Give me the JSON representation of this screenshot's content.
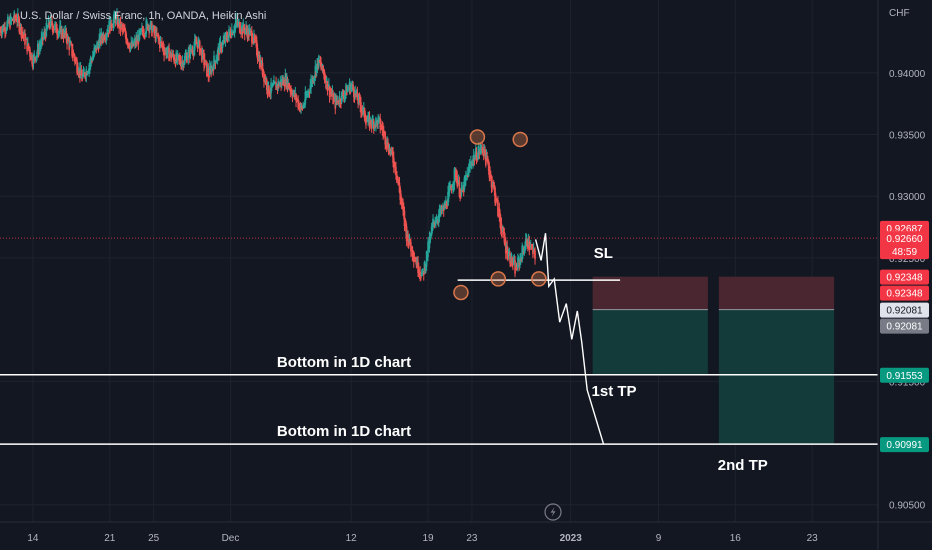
{
  "header": {
    "symbol_title": "U.S. Dollar / Swiss Franc, 1h, OANDA, Heikin Ashi",
    "currency": "CHF"
  },
  "colors": {
    "background": "#131722",
    "grid": "#1e222d",
    "up": "#26a69a",
    "down": "#ef5350",
    "stop_zone": "#4a2730",
    "target_zone": "#123b3a",
    "pattern_circle": "#d9774a"
  },
  "chart_data": {
    "type": "candlestick",
    "title": "U.S. Dollar / Swiss Franc, 1h, OANDA, Heikin Ashi",
    "ylim": [
      0.9036,
      0.9459
    ],
    "y_ticks": [
      "0.94000",
      "0.93500",
      "0.93000",
      "0.92500",
      "0.91500",
      "0.90500"
    ],
    "x_ticks": [
      "14",
      "21",
      "25",
      "Dec",
      "12",
      "19",
      "23",
      "2023",
      "9",
      "16",
      "23"
    ],
    "x_tick_days": [
      14,
      21,
      25,
      32,
      43,
      50,
      54,
      63,
      71,
      78,
      85
    ],
    "xlim_days": [
      11.0,
      91.0
    ],
    "last_data_day": 59.8,
    "price_path": [
      [
        11.0,
        0.9435
      ],
      [
        12.5,
        0.9445
      ],
      [
        14.0,
        0.941
      ],
      [
        15.5,
        0.944
      ],
      [
        17.0,
        0.943
      ],
      [
        18.5,
        0.9395
      ],
      [
        20.0,
        0.9425
      ],
      [
        21.5,
        0.9445
      ],
      [
        23.0,
        0.942
      ],
      [
        24.5,
        0.944
      ],
      [
        26.0,
        0.9418
      ],
      [
        27.5,
        0.9408
      ],
      [
        29.0,
        0.9425
      ],
      [
        30.0,
        0.9398
      ],
      [
        31.0,
        0.942
      ],
      [
        32.5,
        0.944
      ],
      [
        34.0,
        0.943
      ],
      [
        35.5,
        0.9385
      ],
      [
        37.0,
        0.9395
      ],
      [
        38.5,
        0.937
      ],
      [
        40.0,
        0.941
      ],
      [
        41.5,
        0.9375
      ],
      [
        43.0,
        0.939
      ],
      [
        44.5,
        0.936
      ],
      [
        45.5,
        0.936
      ],
      [
        46.0,
        0.935
      ],
      [
        47.0,
        0.9325
      ],
      [
        48.0,
        0.927
      ],
      [
        49.0,
        0.9245
      ],
      [
        49.5,
        0.9235
      ],
      [
        50.5,
        0.928
      ],
      [
        51.5,
        0.929
      ],
      [
        52.5,
        0.932
      ],
      [
        53.0,
        0.93
      ],
      [
        54.0,
        0.933
      ],
      [
        55.0,
        0.934
      ],
      [
        56.0,
        0.9305
      ],
      [
        57.0,
        0.926
      ],
      [
        58.0,
        0.924
      ],
      [
        59.0,
        0.9265
      ],
      [
        60.0,
        0.9245
      ],
      [
        61.0,
        0.9225
      ],
      [
        62.0,
        0.924
      ],
      [
        63.0,
        0.926
      ],
      [
        64.0,
        0.9275
      ],
      [
        65.0,
        0.93
      ],
      [
        66.0,
        0.932
      ],
      [
        67.0,
        0.935
      ],
      [
        68.0,
        0.932
      ],
      [
        69.0,
        0.929
      ],
      [
        70.0,
        0.9285
      ],
      [
        71.0,
        0.9265
      ],
      [
        72.0,
        0.9235
      ],
      [
        73.0,
        0.9245
      ],
      [
        74.0,
        0.9275
      ],
      [
        75.0,
        0.926
      ],
      [
        76.0,
        0.9245
      ],
      [
        77.0,
        0.924
      ],
      [
        78.0,
        0.927
      ],
      [
        79.0,
        0.9295
      ],
      [
        80.0,
        0.93
      ],
      [
        81.0,
        0.932
      ],
      [
        82.0,
        0.9345
      ],
      [
        83.0,
        0.9315
      ],
      [
        84.0,
        0.929
      ],
      [
        85.0,
        0.9285
      ],
      [
        86.0,
        0.93
      ],
      [
        87.0,
        0.93
      ],
      [
        88.0,
        0.929
      ],
      [
        89.0,
        0.9265
      ]
    ],
    "support_line": {
      "price": 0.9232,
      "start_day": 52.7,
      "end_day": 67.5
    },
    "pattern_points": [
      {
        "day": 53.0,
        "price": 0.9222
      },
      {
        "day": 54.5,
        "price": 0.9348
      },
      {
        "day": 56.4,
        "price": 0.9233
      },
      {
        "day": 58.4,
        "price": 0.9346
      },
      {
        "day": 60.1,
        "price": 0.9233
      }
    ],
    "projection_path": [
      [
        59.8,
        0.9265
      ],
      [
        60.3,
        0.9248
      ],
      [
        60.7,
        0.927
      ],
      [
        61.0,
        0.9227
      ],
      [
        61.5,
        0.9233
      ],
      [
        62.0,
        0.9198
      ],
      [
        62.6,
        0.9213
      ],
      [
        63.1,
        0.9184
      ],
      [
        63.6,
        0.9207
      ],
      [
        64.0,
        0.9182
      ],
      [
        64.5,
        0.9143
      ],
      [
        66.0,
        0.9099
      ]
    ],
    "levels": [
      {
        "label": "Bottom in 1D chart",
        "price": 0.91553,
        "badge": "0.91553"
      },
      {
        "label": "Bottom in 1D chart",
        "price": 0.90991,
        "badge": "0.90991"
      }
    ],
    "positions": [
      {
        "start_day": 65.0,
        "end_day": 75.5,
        "stop_price": 0.92348,
        "entry_price": 0.92081,
        "target_price": 0.91553
      },
      {
        "start_day": 76.5,
        "end_day": 87.0,
        "stop_price": 0.92348,
        "entry_price": 0.92081,
        "target_price": 0.90991
      }
    ],
    "annotations": {
      "sl": "SL",
      "tp1": "1st TP",
      "tp2": "2nd TP"
    },
    "current_price_line": 0.9266,
    "price_badges": [
      {
        "value": "0.92687",
        "price": 0.92687,
        "color": "#f23645"
      },
      {
        "value": "0.92660",
        "sub": "48:59",
        "price": 0.9266,
        "color": "#f23645"
      },
      {
        "value": "0.92348",
        "price": 0.92348,
        "color": "#f23645"
      },
      {
        "value": "0.92348",
        "price": 0.92348,
        "color": "#f23645",
        "stack": 1
      },
      {
        "value": "0.92081",
        "price": 0.92081,
        "color": "#e0e3eb",
        "dark": true
      },
      {
        "value": "0.92081",
        "price": 0.92081,
        "color": "#787b86",
        "stack": 1
      },
      {
        "value": "0.91553",
        "price": 0.91553,
        "color": "#089981"
      },
      {
        "value": "0.90991",
        "price": 0.90991,
        "color": "#089981"
      }
    ]
  }
}
